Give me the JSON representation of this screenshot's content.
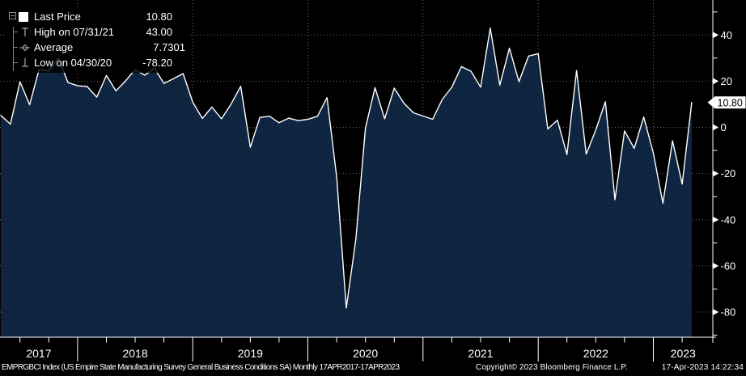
{
  "legend": {
    "items": [
      {
        "icon": "series-swatch",
        "label": "Last Price",
        "value": "10.80"
      },
      {
        "icon": "high-marker",
        "label": "High on 07/31/21",
        "value": "43.00"
      },
      {
        "icon": "average-marker",
        "label": "Average",
        "value": "7.7301"
      },
      {
        "icon": "low-marker",
        "label": "Low on 04/30/20",
        "value": "-78.20"
      }
    ]
  },
  "y_axis": {
    "major_ticks": [
      40,
      20,
      0,
      -20,
      -40,
      -60,
      -80
    ],
    "minor_ticks": [
      50,
      30,
      10,
      -10,
      -30,
      -50,
      -70,
      -90
    ],
    "last_price_tag": "10.80"
  },
  "x_axis": {
    "year_labels": [
      "2017",
      "2018",
      "2019",
      "2020",
      "2021",
      "2022",
      "2023"
    ]
  },
  "footer": {
    "left": "EMPRGBCI Index (US Empire State Manufacturing Survey General Business Conditions SA)  Monthly 17APR2017-17APR2023",
    "center": "Copyright© 2023 Bloomberg Finance L.P.",
    "right": "17-Apr-2023 14:22:34"
  },
  "colors": {
    "background": "#000000",
    "area_fill": "#0e233e",
    "area_dot": "#1b3a5e",
    "line": "#ffffff",
    "grid": "#b9c2cc",
    "axis": "#ffffff",
    "tag_bg": "#ffffff",
    "tag_text": "#000000"
  },
  "chart_data": {
    "type": "area",
    "title": "EMPRGBCI Index (US Empire State Manufacturing Survey General Business Conditions SA)",
    "frequency": "Monthly",
    "range": "17APR2017-17APR2023",
    "ylim": [
      -90,
      50
    ],
    "grid": true,
    "legend_position": "top-left",
    "x": [
      "2017-04",
      "2017-05",
      "2017-06",
      "2017-07",
      "2017-08",
      "2017-09",
      "2017-10",
      "2017-11",
      "2017-12",
      "2018-01",
      "2018-02",
      "2018-03",
      "2018-04",
      "2018-05",
      "2018-06",
      "2018-07",
      "2018-08",
      "2018-09",
      "2018-10",
      "2018-11",
      "2018-12",
      "2019-01",
      "2019-02",
      "2019-03",
      "2019-04",
      "2019-05",
      "2019-06",
      "2019-07",
      "2019-08",
      "2019-09",
      "2019-10",
      "2019-11",
      "2019-12",
      "2020-01",
      "2020-02",
      "2020-03",
      "2020-04",
      "2020-05",
      "2020-06",
      "2020-07",
      "2020-08",
      "2020-09",
      "2020-10",
      "2020-11",
      "2020-12",
      "2021-01",
      "2021-02",
      "2021-03",
      "2021-04",
      "2021-05",
      "2021-06",
      "2021-07",
      "2021-08",
      "2021-09",
      "2021-10",
      "2021-11",
      "2021-12",
      "2022-01",
      "2022-02",
      "2022-03",
      "2022-04",
      "2022-05",
      "2022-06",
      "2022-07",
      "2022-08",
      "2022-09",
      "2022-10",
      "2022-11",
      "2022-12",
      "2023-01",
      "2023-02",
      "2023-03",
      "2023-04"
    ],
    "series": [
      {
        "name": "Last Price",
        "values": [
          5.2,
          1.4,
          19.8,
          9.8,
          25.2,
          24.4,
          30.2,
          19.4,
          18.0,
          17.7,
          13.1,
          22.5,
          15.8,
          20.1,
          25.0,
          22.6,
          25.6,
          19.0,
          21.1,
          23.3,
          10.9,
          3.9,
          8.8,
          3.7,
          10.1,
          17.8,
          -8.6,
          4.3,
          4.8,
          2.0,
          4.0,
          2.9,
          3.5,
          4.8,
          12.9,
          -21.5,
          -78.2,
          -48.5,
          -0.2,
          17.2,
          3.7,
          17.0,
          10.5,
          6.3,
          4.9,
          3.5,
          12.1,
          17.4,
          26.3,
          24.3,
          17.4,
          43.0,
          18.3,
          34.3,
          19.8,
          30.9,
          31.9,
          -0.7,
          3.1,
          -11.8,
          24.6,
          -11.6,
          -1.2,
          11.1,
          -31.3,
          -1.5,
          -9.1,
          4.5,
          -11.2,
          -32.9,
          -5.8,
          -24.6,
          10.8
        ]
      }
    ],
    "stats": {
      "last": 10.8,
      "high": 43.0,
      "high_date": "07/31/21",
      "average": 7.7301,
      "low": -78.2,
      "low_date": "04/30/20"
    }
  }
}
